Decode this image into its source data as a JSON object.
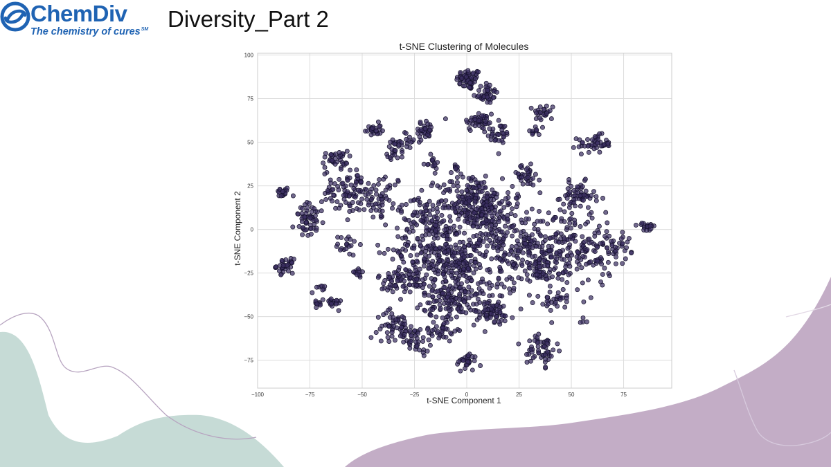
{
  "header": {
    "logo_wordmark": "ChemDiv",
    "logo_tagline": "The chemistry of cures",
    "logo_tagline_mark": "SM",
    "slide_title": "Diversity_Part 2"
  },
  "colors": {
    "brand_blue": "#1f63b3",
    "point_fill": "#3b2f63",
    "point_edge": "#14102a",
    "decor_teal": "#c6dbd6",
    "decor_mauve": "#c3adc6"
  },
  "chart_data": {
    "type": "scatter",
    "title": "t-SNE Clustering of Molecules",
    "xlabel": "t-SNE Component 1",
    "ylabel": "t-SNE Component 2",
    "xlim": [
      -100,
      98
    ],
    "ylim": [
      -91,
      101
    ],
    "xticks": [
      -100,
      -75,
      -50,
      -25,
      0,
      25,
      50,
      75
    ],
    "yticks": [
      100,
      75,
      50,
      25,
      0,
      -25,
      -50,
      -75
    ],
    "xtick_labels": [
      "−100",
      "−75",
      "−50",
      "−25",
      "0",
      "25",
      "50",
      "75"
    ],
    "ytick_labels": [
      "100",
      "75",
      "50",
      "25",
      "0",
      "−25",
      "−50",
      "−75"
    ],
    "grid": true,
    "legend": "none",
    "clusters": [
      {
        "cx": 1,
        "cy": 86,
        "sx": 3,
        "sy": 3,
        "n": 55
      },
      {
        "cx": 9,
        "cy": 78,
        "sx": 3,
        "sy": 3,
        "n": 40
      },
      {
        "cx": 6,
        "cy": 62,
        "sx": 4,
        "sy": 3,
        "n": 45
      },
      {
        "cx": 15,
        "cy": 55,
        "sx": 3,
        "sy": 3,
        "n": 30
      },
      {
        "cx": 37,
        "cy": 67,
        "sx": 2.5,
        "sy": 2.5,
        "n": 25
      },
      {
        "cx": 33,
        "cy": 56,
        "sx": 2,
        "sy": 2,
        "n": 10
      },
      {
        "cx": 61,
        "cy": 49,
        "sx": 4,
        "sy": 2.5,
        "n": 45
      },
      {
        "cx": -45,
        "cy": 57,
        "sx": 2,
        "sy": 2,
        "n": 25
      },
      {
        "cx": -29,
        "cy": 50,
        "sx": 3,
        "sy": 3,
        "n": 25
      },
      {
        "cx": -20,
        "cy": 57,
        "sx": 2.5,
        "sy": 2.5,
        "n": 30
      },
      {
        "cx": -34,
        "cy": 44,
        "sx": 2,
        "sy": 2,
        "n": 15
      },
      {
        "cx": -63,
        "cy": 40,
        "sx": 3,
        "sy": 2.5,
        "n": 35
      },
      {
        "cx": -17,
        "cy": 38,
        "sx": 2,
        "sy": 2,
        "n": 15
      },
      {
        "cx": -88,
        "cy": 21,
        "sx": 1.8,
        "sy": 1.5,
        "n": 18
      },
      {
        "cx": -87,
        "cy": -21,
        "sx": 2,
        "sy": 2,
        "n": 35
      },
      {
        "cx": -75,
        "cy": 5,
        "sx": 3.5,
        "sy": 5,
        "n": 55
      },
      {
        "cx": -57,
        "cy": 22,
        "sx": 6,
        "sy": 6,
        "n": 90
      },
      {
        "cx": -40,
        "cy": 18,
        "sx": 5,
        "sy": 7,
        "n": 55
      },
      {
        "cx": -57,
        "cy": -9,
        "sx": 2.5,
        "sy": 3,
        "n": 20
      },
      {
        "cx": -71,
        "cy": -35,
        "sx": 1.5,
        "sy": 1.5,
        "n": 8
      },
      {
        "cx": -72,
        "cy": -43,
        "sx": 1.5,
        "sy": 1.5,
        "n": 10
      },
      {
        "cx": -64,
        "cy": -42,
        "sx": 2,
        "sy": 1.5,
        "n": 20
      },
      {
        "cx": -52,
        "cy": -25,
        "sx": 2,
        "sy": 1.5,
        "n": 12
      },
      {
        "cx": 28,
        "cy": 31,
        "sx": 3.5,
        "sy": 3,
        "n": 35
      },
      {
        "cx": 53,
        "cy": 19,
        "sx": 4,
        "sy": 4,
        "n": 60
      },
      {
        "cx": 86,
        "cy": 1,
        "sx": 2,
        "sy": 1.5,
        "n": 18
      },
      {
        "cx": 2,
        "cy": 16,
        "sx": 8,
        "sy": 8,
        "n": 200
      },
      {
        "cx": -15,
        "cy": -12,
        "sx": 10,
        "sy": 10,
        "n": 220
      },
      {
        "cx": 22,
        "cy": -10,
        "sx": 12,
        "sy": 12,
        "n": 220
      },
      {
        "cx": 50,
        "cy": -12,
        "sx": 10,
        "sy": 12,
        "n": 180
      },
      {
        "cx": 68,
        "cy": -10,
        "sx": 5,
        "sy": 5,
        "n": 45
      },
      {
        "cx": 12,
        "cy": 10,
        "sx": 8,
        "sy": 8,
        "n": 80
      },
      {
        "cx": -22,
        "cy": 8,
        "sx": 5,
        "sy": 5,
        "n": 50
      },
      {
        "cx": -30,
        "cy": -30,
        "sx": 6,
        "sy": 5,
        "n": 70
      },
      {
        "cx": -5,
        "cy": -40,
        "sx": 8,
        "sy": 6,
        "n": 150
      },
      {
        "cx": 12,
        "cy": -48,
        "sx": 5,
        "sy": 4,
        "n": 60
      },
      {
        "cx": -35,
        "cy": -55,
        "sx": 4,
        "sy": 4,
        "n": 45
      },
      {
        "cx": -25,
        "cy": -62,
        "sx": 4,
        "sy": 4,
        "n": 45
      },
      {
        "cx": -12,
        "cy": -58,
        "sx": 4,
        "sy": 3,
        "n": 30
      },
      {
        "cx": 0,
        "cy": -76,
        "sx": 2.5,
        "sy": 2.5,
        "n": 30
      },
      {
        "cx": 36,
        "cy": -68,
        "sx": 3.5,
        "sy": 5,
        "n": 55
      },
      {
        "cx": 42,
        "cy": -40,
        "sx": 3,
        "sy": 2.5,
        "n": 25
      },
      {
        "cx": 55,
        "cy": -52,
        "sx": 1.2,
        "sy": 1.2,
        "n": 4
      },
      {
        "cx": 35,
        "cy": -25,
        "sx": 4,
        "sy": 4,
        "n": 35
      },
      {
        "cx": -5,
        "cy": 35,
        "sx": 2,
        "sy": 2,
        "n": 8
      },
      {
        "cx": 0,
        "cy": -20,
        "sx": 6,
        "sy": 6,
        "n": 80
      }
    ]
  }
}
